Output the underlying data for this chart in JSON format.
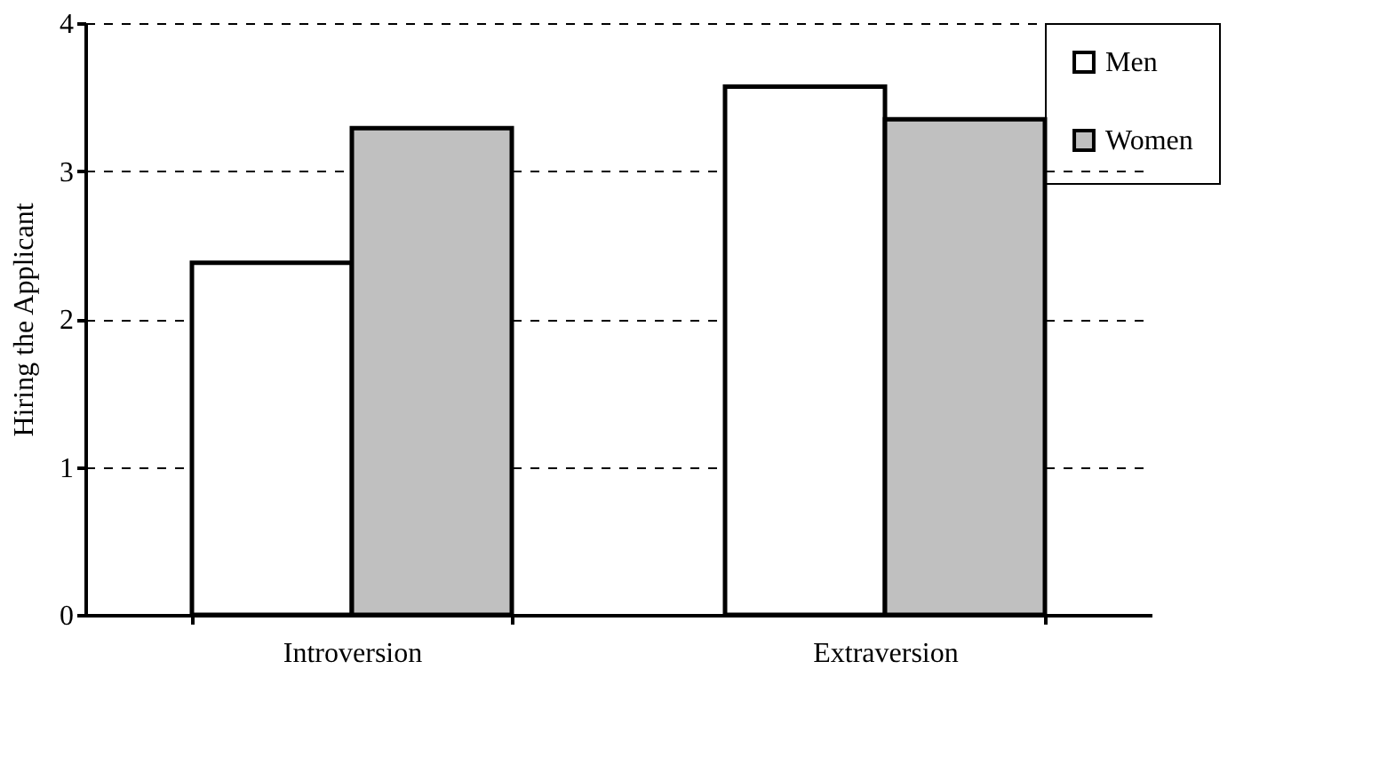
{
  "chart_data": {
    "type": "bar",
    "ylabel": "Hiring the Applicant",
    "categories": [
      "Introversion",
      "Extraversion"
    ],
    "series": [
      {
        "name": "Men",
        "color": "#ffffff",
        "values": [
          2.38,
          3.57
        ]
      },
      {
        "name": "Women",
        "color": "#c0c0c0",
        "values": [
          3.29,
          3.35
        ]
      }
    ],
    "ylim": [
      0,
      4
    ],
    "yticks": [
      0,
      1,
      2,
      3,
      4
    ],
    "grid": "y",
    "legend": "top right"
  }
}
